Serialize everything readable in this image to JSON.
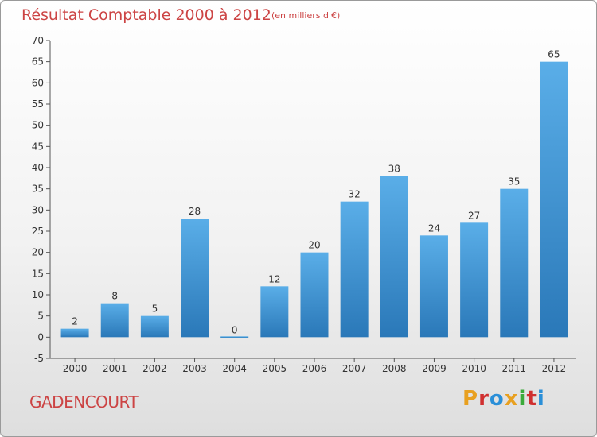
{
  "header": {
    "title": "Résultat Comptable 2000 à 2012",
    "subtitle": "(en milliers d'€)"
  },
  "footer": {
    "commune": "GADENCOURT",
    "logo_text": "Proxiti"
  },
  "colors": {
    "title": "#cc4444",
    "bar_top": "#5aaee8",
    "bar_bottom": "#2a78b8",
    "logo": [
      "#e8a020",
      "#d03030",
      "#2a8fd8",
      "#e8a020",
      "#3aaa3a",
      "#d03030",
      "#2a8fd8"
    ]
  },
  "chart_data": {
    "type": "bar",
    "title": "Résultat Comptable 2000 à 2012",
    "xlabel": "",
    "ylabel": "",
    "categories": [
      "2000",
      "2001",
      "2002",
      "2003",
      "2004",
      "2005",
      "2006",
      "2007",
      "2008",
      "2009",
      "2010",
      "2011",
      "2012"
    ],
    "values": [
      2,
      8,
      5,
      28,
      0,
      12,
      20,
      32,
      38,
      24,
      27,
      35,
      65
    ],
    "ylim": [
      -5,
      70
    ],
    "yticks": [
      -5,
      0,
      5,
      10,
      15,
      20,
      25,
      30,
      35,
      40,
      45,
      50,
      55,
      60,
      65,
      70
    ],
    "grid": false,
    "legend": "none"
  }
}
